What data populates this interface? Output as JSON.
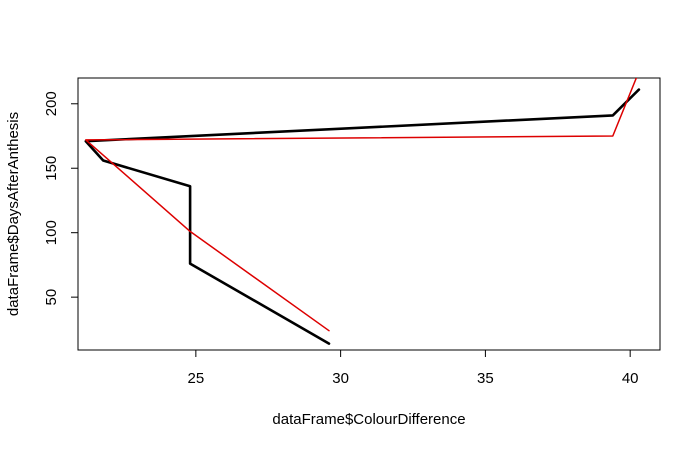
{
  "chart_data": {
    "type": "line",
    "title": "",
    "xlabel": "dataFrame$ColourDifference",
    "ylabel": "dataFrame$DaysAfterAnthesis",
    "xlim": [
      20.93,
      41.03
    ],
    "ylim": [
      9,
      220
    ],
    "xticks": [
      25,
      30,
      35,
      40
    ],
    "yticks": [
      50,
      100,
      150,
      200
    ],
    "grid": false,
    "legend": "none",
    "series": [
      {
        "color": "#000000",
        "width": "thick",
        "x": [
          29.6,
          24.8,
          24.8,
          24.8,
          21.8,
          21.2,
          39.4,
          40.3
        ],
        "y": [
          14,
          76,
          100,
          136,
          156,
          171,
          191,
          211
        ]
      },
      {
        "color": "#dd0000",
        "width": "thin",
        "x": [
          29.6,
          24.8,
          21.2,
          39.4,
          40.3
        ],
        "y": [
          24,
          101,
          172,
          175,
          225
        ]
      }
    ]
  }
}
